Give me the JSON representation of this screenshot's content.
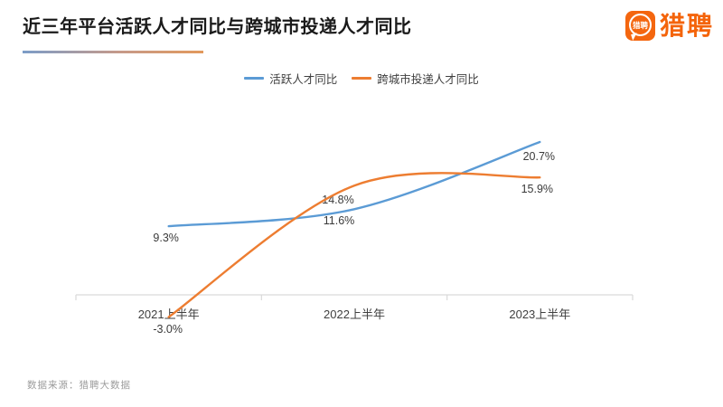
{
  "header": {
    "title": "近三年平台活跃人才同比与跨城市投递人才同比"
  },
  "logo": {
    "brand_text": "猎聘",
    "icon_text": "猎聘",
    "brand_color": "#F4640A"
  },
  "chart_data": {
    "type": "line",
    "title": "近三年平台活跃人才同比与跨城市投递人才同比",
    "categories": [
      "2021上半年",
      "2022上半年",
      "2023上半年"
    ],
    "series": [
      {
        "name": "活跃人才同比",
        "values": [
          9.3,
          11.6,
          20.7
        ],
        "labels": [
          "9.3%",
          "11.6%",
          "20.7%"
        ],
        "color": "#5B9BD5"
      },
      {
        "name": "跨城市投递人才同比",
        "values": [
          -3.0,
          14.8,
          15.9
        ],
        "labels": [
          "-3.0%",
          "14.8%",
          "15.9%"
        ],
        "color": "#ED7D31"
      }
    ],
    "unit": "%",
    "ylim": [
      -6,
      25
    ],
    "smooth": true,
    "grid": false,
    "y_axis_visible": false,
    "legend_position": "top",
    "axis_color": "#D9D9D9"
  },
  "footer": {
    "source": "数据来源：猎聘大数据"
  }
}
